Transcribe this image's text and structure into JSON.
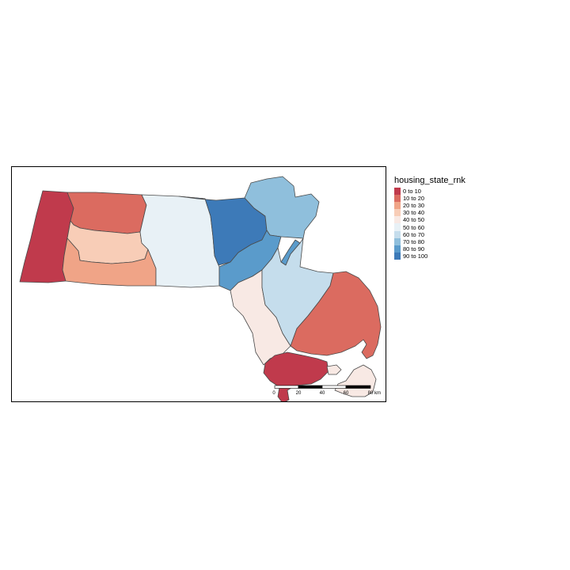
{
  "legend": {
    "title": "housing_state_rnk",
    "classes": [
      {
        "label": "0 to 10",
        "color": "#c03a4c"
      },
      {
        "label": "10 to 20",
        "color": "#db6b60"
      },
      {
        "label": "20 to 30",
        "color": "#f0a487"
      },
      {
        "label": "30 to 40",
        "color": "#f8cdb7"
      },
      {
        "label": "40 to 50",
        "color": "#f8e9e4"
      },
      {
        "label": "50 to 60",
        "color": "#e8f1f6"
      },
      {
        "label": "60 to 70",
        "color": "#c5ddec"
      },
      {
        "label": "70 to 80",
        "color": "#8fbfdc"
      },
      {
        "label": "80 to 90",
        "color": "#5a9bcb"
      },
      {
        "label": "90 to 100",
        "color": "#3d7ab8"
      }
    ]
  },
  "scale_bar": {
    "ticks": [
      "0",
      "20",
      "40",
      "60",
      "80"
    ],
    "unit": "km"
  },
  "map": {
    "frame_color": "#000000",
    "regions": [
      {
        "name": "berkshire",
        "class": 0
      },
      {
        "name": "franklin",
        "class": 1
      },
      {
        "name": "hampshire",
        "class": 3
      },
      {
        "name": "hampden",
        "class": 2
      },
      {
        "name": "worcester",
        "class": 5
      },
      {
        "name": "middlesex",
        "class": 9
      },
      {
        "name": "essex",
        "class": 7
      },
      {
        "name": "suffolk",
        "class": 8
      },
      {
        "name": "norfolk",
        "class": 8
      },
      {
        "name": "bristol",
        "class": 4
      },
      {
        "name": "plymouth",
        "class": 6
      },
      {
        "name": "barnstable",
        "class": 1
      },
      {
        "name": "dukes",
        "class": 0
      },
      {
        "name": "nantucket",
        "class": 4
      },
      {
        "name": "cape-tip",
        "class": 4
      }
    ]
  }
}
